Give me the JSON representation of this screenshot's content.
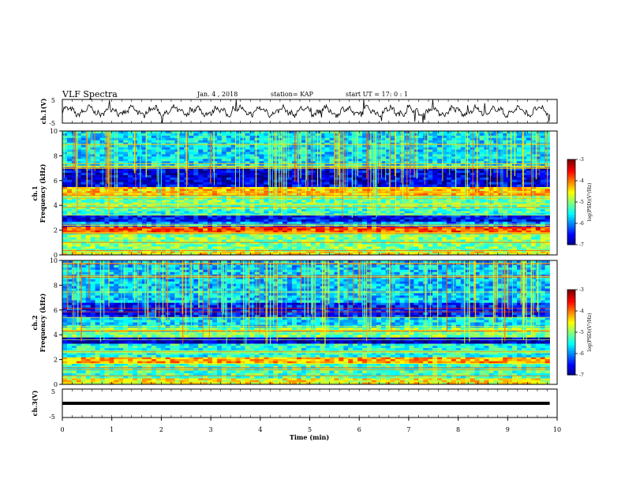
{
  "header": {
    "title": "VLF Spectra",
    "date": "Jan. 4 , 2018",
    "station": "station= KAP",
    "start": "start UT = 17: 0 : 1"
  },
  "chart_data": [
    {
      "type": "line",
      "panel": "ch1-waveform",
      "ylabel": "ch.1(V)",
      "ylim": [
        -5,
        5
      ],
      "yticks": [
        "5",
        "-5"
      ],
      "xlim": [
        0,
        9.85
      ],
      "x_unit": "min",
      "series_mean": 0,
      "series_amplitude_approx": 2.5
    },
    {
      "type": "heatmap",
      "panel": "ch1-spectrogram",
      "ylabel": "ch.1\nFrequency (kHz)",
      "ylabel_lines": [
        "ch.1",
        "Frequency (kHz)"
      ],
      "ylim": [
        0,
        10
      ],
      "yticks": [
        "0",
        "2",
        "4",
        "6",
        "8",
        "10"
      ],
      "xlim": [
        0,
        9.85
      ],
      "colorbar": {
        "label": "log(PSD)(V²/Hz)",
        "range": [
          -7,
          -3
        ],
        "ticks": [
          "-3",
          "-4",
          "-5",
          "-6",
          "-7"
        ]
      },
      "bands_khz": [
        {
          "f": [
            0.0,
            0.3
          ],
          "level": -4.5
        },
        {
          "f": [
            0.3,
            1.8
          ],
          "level": -5.0
        },
        {
          "f": [
            1.8,
            2.3
          ],
          "level": -3.8
        },
        {
          "f": [
            2.3,
            2.7
          ],
          "level": -6.0
        },
        {
          "f": [
            2.7,
            3.2
          ],
          "level": -6.5
        },
        {
          "f": [
            3.2,
            3.7
          ],
          "level": -5.3
        },
        {
          "f": [
            3.7,
            4.8
          ],
          "level": -5.1
        },
        {
          "f": [
            4.8,
            5.5
          ],
          "level": -4.3
        },
        {
          "f": [
            5.5,
            7.0
          ],
          "level": -6.6
        },
        {
          "f": [
            7.0,
            10.0
          ],
          "level": -5.6
        }
      ]
    },
    {
      "type": "heatmap",
      "panel": "ch2-spectrogram",
      "ylabel": "ch.2\nFrequency (kHz)",
      "ylabel_lines": [
        "ch.2",
        "Frequency (kHz)"
      ],
      "ylim": [
        0,
        10
      ],
      "yticks": [
        "0",
        "2",
        "4",
        "6",
        "8",
        "10"
      ],
      "xlim": [
        0,
        9.85
      ],
      "colorbar": {
        "label": "log(PSD)(V²/Hz)",
        "range": [
          -7,
          -3
        ],
        "ticks": [
          "-3",
          "-4",
          "-5",
          "-6",
          "-7"
        ]
      },
      "bands_khz": [
        {
          "f": [
            0.0,
            0.5
          ],
          "level": -4.5
        },
        {
          "f": [
            0.5,
            1.7
          ],
          "level": -5.2
        },
        {
          "f": [
            1.7,
            2.2
          ],
          "level": -4.2
        },
        {
          "f": [
            2.2,
            3.3
          ],
          "level": -5.4
        },
        {
          "f": [
            3.3,
            3.8
          ],
          "level": -6.8
        },
        {
          "f": [
            3.8,
            4.6
          ],
          "level": -5.0
        },
        {
          "f": [
            4.6,
            5.4
          ],
          "level": -5.6
        },
        {
          "f": [
            5.4,
            6.6
          ],
          "level": -6.4
        },
        {
          "f": [
            6.6,
            10.0
          ],
          "level": -5.7
        }
      ]
    },
    {
      "type": "line",
      "panel": "ch3-waveform",
      "ylabel": "ch.3(V)",
      "ylim": [
        -5,
        5
      ],
      "yticks": [
        "5",
        "-5"
      ],
      "xlim": [
        0,
        9.85
      ],
      "constant_value": 0
    }
  ],
  "xaxis": {
    "label": "Time (min)",
    "ticks": [
      "0",
      "1",
      "2",
      "3",
      "4",
      "5",
      "6",
      "7",
      "8",
      "9",
      "10"
    ],
    "range": [
      0,
      10
    ]
  }
}
